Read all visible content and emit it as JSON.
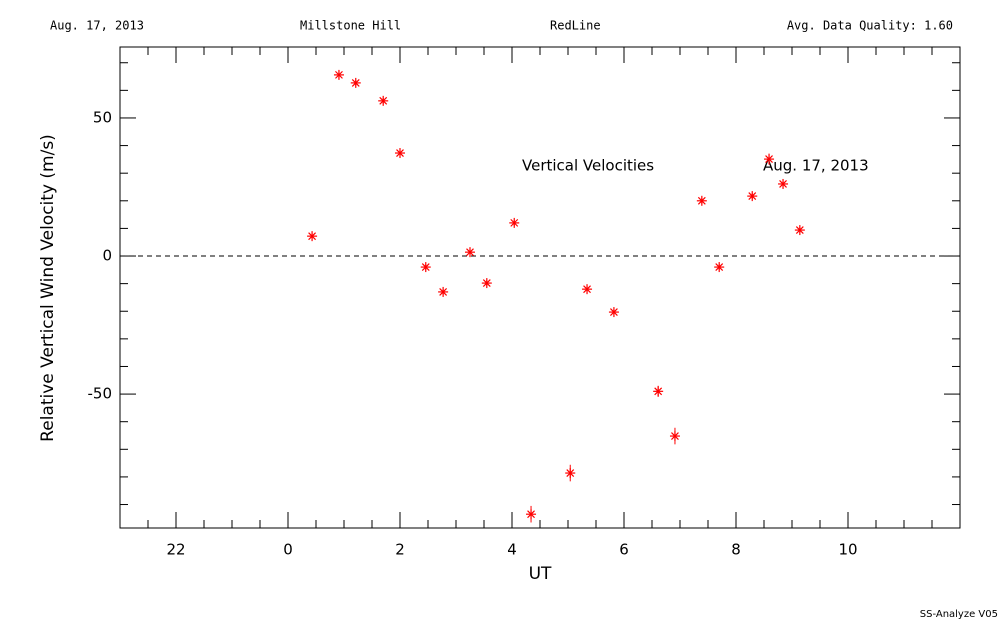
{
  "chart_data": {
    "type": "scatter",
    "header": [
      "Aug. 17, 2013",
      "Millstone Hill",
      "RedLine",
      "Avg. Data Quality: 1.60"
    ],
    "annotations": [
      "Vertical Velocities",
      "Aug. 17, 2013"
    ],
    "footer": "SS-Analyze V05",
    "xlabel": "UT",
    "ylabel": "Relative Vertical Wind Velocity (m/s)",
    "color": "#ff0000",
    "reference_line": 0,
    "xlim": [
      -3,
      12
    ],
    "ylim": [
      -98.5,
      75.7
    ],
    "xticks": [
      {
        "value": -2,
        "label": "22"
      },
      0,
      2,
      4,
      6,
      8,
      10
    ],
    "yticks": [
      -50,
      0,
      50
    ],
    "xminorticks": [
      -2.5,
      -1.5,
      -1,
      -0.5,
      0.5,
      1,
      1.5,
      2.5,
      3,
      3.5,
      4.5,
      5,
      5.5,
      6.5,
      7,
      7.5,
      8.5,
      9,
      9.5,
      10.5,
      11,
      11.5
    ],
    "yminorticks": [
      -90,
      -80,
      -70,
      -60,
      -40,
      -30,
      -20,
      -10,
      10,
      20,
      30,
      40,
      60,
      70
    ],
    "x": [
      0.43,
      0.91,
      1.21,
      1.7,
      2.0,
      2.46,
      2.77,
      3.25,
      3.55,
      4.04,
      4.34,
      5.04,
      5.34,
      5.82,
      6.61,
      6.91,
      7.39,
      7.7,
      8.29,
      8.59,
      8.84,
      9.14
    ],
    "values": [
      7.2,
      65.6,
      62.7,
      56.2,
      37.3,
      -4,
      -13,
      1.4,
      -9.8,
      12,
      -93.5,
      -78.6,
      -12,
      -20.3,
      -49,
      -65.2,
      20,
      -4,
      21.7,
      35.1,
      26.1,
      9.4
    ],
    "errors": [
      1,
      1.5,
      1,
      1,
      1,
      1,
      1,
      1,
      1,
      1,
      3,
      3,
      1,
      1,
      2,
      3,
      1,
      1,
      1,
      2,
      1,
      1
    ]
  }
}
